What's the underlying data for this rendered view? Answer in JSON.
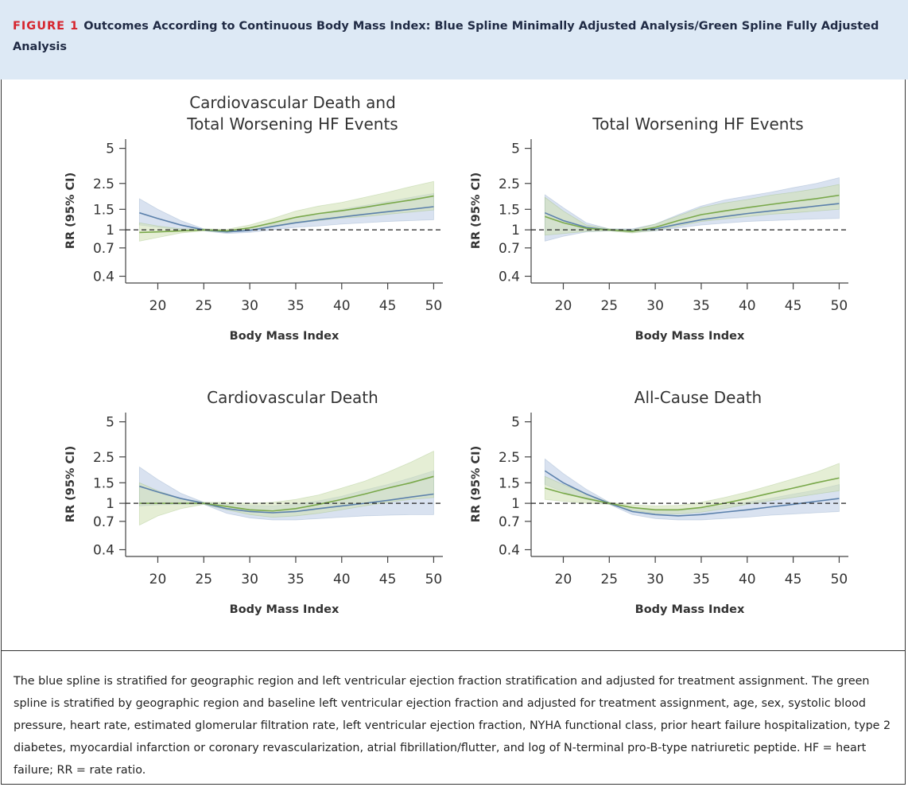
{
  "figure": {
    "label": "FIGURE 1",
    "title": "Outcomes According to Continuous Body Mass Index: Blue Spline Minimally Adjusted Analysis/Green Spline Fully Adjusted Analysis"
  },
  "chart_data": [
    {
      "type": "line",
      "title": "Cardiovascular Death and Total Worsening HF Events",
      "xlabel": "Body Mass Index",
      "ylabel": "RR (95% CI)",
      "x": [
        18,
        20,
        22.5,
        25,
        27.5,
        30,
        32.5,
        35,
        37.5,
        40,
        42.5,
        45,
        47.5,
        50
      ],
      "series": [
        {
          "color": "#5b80ab",
          "band_color": "#b9cbe3",
          "values": [
            1.4,
            1.25,
            1.1,
            1.0,
            0.96,
            0.99,
            1.07,
            1.15,
            1.22,
            1.29,
            1.36,
            1.43,
            1.5,
            1.58
          ],
          "lower": [
            1.1,
            1.05,
            1.0,
            0.98,
            0.93,
            0.95,
            1.0,
            1.05,
            1.08,
            1.12,
            1.15,
            1.18,
            1.2,
            1.22
          ],
          "upper": [
            1.85,
            1.5,
            1.2,
            1.02,
            0.99,
            1.04,
            1.15,
            1.27,
            1.38,
            1.5,
            1.62,
            1.75,
            1.9,
            2.05
          ]
        },
        {
          "color": "#79a84a",
          "band_color": "#cfe0b2",
          "values": [
            0.95,
            0.96,
            0.98,
            1.0,
            0.98,
            1.04,
            1.15,
            1.28,
            1.38,
            1.46,
            1.56,
            1.68,
            1.8,
            1.95
          ],
          "lower": [
            0.8,
            0.86,
            0.94,
            0.98,
            0.95,
            0.99,
            1.06,
            1.14,
            1.2,
            1.26,
            1.3,
            1.36,
            1.42,
            1.48
          ],
          "upper": [
            1.15,
            1.08,
            1.02,
            1.02,
            1.01,
            1.1,
            1.25,
            1.45,
            1.6,
            1.72,
            1.9,
            2.1,
            2.35,
            2.6
          ]
        }
      ],
      "xlim": [
        16.5,
        51
      ],
      "ylim": [
        0.35,
        6
      ],
      "xticks": [
        20,
        25,
        30,
        35,
        40,
        45,
        50
      ],
      "yticks": [
        0.4,
        0.7,
        1,
        1.5,
        2.5,
        5
      ],
      "log_y": true,
      "reference_line": 1
    },
    {
      "type": "line",
      "title": "Total Worsening HF Events",
      "xlabel": "Body Mass Index",
      "ylabel": "RR (95% CI)",
      "x": [
        18,
        20,
        22.5,
        25,
        27.5,
        30,
        32.5,
        35,
        37.5,
        40,
        42.5,
        45,
        47.5,
        50
      ],
      "series": [
        {
          "color": "#5b80ab",
          "band_color": "#b9cbe3",
          "values": [
            1.4,
            1.2,
            1.05,
            1.0,
            0.98,
            1.02,
            1.12,
            1.22,
            1.3,
            1.38,
            1.45,
            1.52,
            1.6,
            1.68
          ],
          "lower": [
            0.8,
            0.88,
            0.96,
            0.98,
            0.95,
            0.98,
            1.04,
            1.1,
            1.14,
            1.18,
            1.2,
            1.22,
            1.24,
            1.25
          ],
          "upper": [
            2.0,
            1.55,
            1.15,
            1.02,
            1.02,
            1.12,
            1.35,
            1.6,
            1.8,
            1.95,
            2.1,
            2.3,
            2.5,
            2.8
          ]
        },
        {
          "color": "#79a84a",
          "band_color": "#cfe0b2",
          "values": [
            1.3,
            1.15,
            1.03,
            1.0,
            0.97,
            1.05,
            1.2,
            1.35,
            1.45,
            1.55,
            1.65,
            1.75,
            1.85,
            1.98
          ],
          "lower": [
            0.9,
            0.93,
            0.97,
            0.98,
            0.94,
            0.99,
            1.08,
            1.18,
            1.24,
            1.3,
            1.36,
            1.4,
            1.45,
            1.5
          ],
          "upper": [
            1.9,
            1.45,
            1.1,
            1.02,
            1.0,
            1.12,
            1.32,
            1.55,
            1.7,
            1.82,
            1.98,
            2.1,
            2.25,
            2.45
          ]
        }
      ],
      "xlim": [
        16.5,
        51
      ],
      "ylim": [
        0.35,
        6
      ],
      "xticks": [
        20,
        25,
        30,
        35,
        40,
        45,
        50
      ],
      "yticks": [
        0.4,
        0.7,
        1,
        1.5,
        2.5,
        5
      ],
      "log_y": true,
      "reference_line": 1
    },
    {
      "type": "line",
      "title": "Cardiovascular Death",
      "xlabel": "Body Mass Index",
      "ylabel": "RR (95% CI)",
      "x": [
        18,
        20,
        22.5,
        25,
        27.5,
        30,
        32.5,
        35,
        37.5,
        40,
        42.5,
        45,
        47.5,
        50
      ],
      "series": [
        {
          "color": "#5b80ab",
          "band_color": "#b9cbe3",
          "values": [
            1.4,
            1.25,
            1.1,
            1.0,
            0.9,
            0.85,
            0.83,
            0.85,
            0.9,
            0.95,
            1.0,
            1.06,
            1.13,
            1.2
          ],
          "lower": [
            0.95,
            0.97,
            0.98,
            0.98,
            0.82,
            0.75,
            0.72,
            0.72,
            0.74,
            0.76,
            0.78,
            0.79,
            0.8,
            0.8
          ],
          "upper": [
            2.05,
            1.6,
            1.22,
            1.02,
            0.98,
            0.96,
            0.95,
            0.98,
            1.05,
            1.15,
            1.3,
            1.45,
            1.65,
            1.9
          ]
        },
        {
          "color": "#79a84a",
          "band_color": "#cfe0b2",
          "values": [
            1.0,
            1.0,
            1.0,
            1.0,
            0.94,
            0.88,
            0.86,
            0.9,
            0.98,
            1.08,
            1.2,
            1.35,
            1.5,
            1.7
          ],
          "lower": [
            0.65,
            0.78,
            0.9,
            0.98,
            0.88,
            0.8,
            0.76,
            0.78,
            0.82,
            0.88,
            0.95,
            1.02,
            1.08,
            1.12
          ],
          "upper": [
            1.5,
            1.28,
            1.1,
            1.02,
            1.02,
            1.0,
            1.02,
            1.08,
            1.18,
            1.35,
            1.55,
            1.85,
            2.25,
            2.8
          ]
        }
      ],
      "xlim": [
        16.5,
        51
      ],
      "ylim": [
        0.35,
        6
      ],
      "xticks": [
        20,
        25,
        30,
        35,
        40,
        45,
        50
      ],
      "yticks": [
        0.4,
        0.7,
        1,
        1.5,
        2.5,
        5
      ],
      "log_y": true,
      "reference_line": 1
    },
    {
      "type": "line",
      "title": "All-Cause Death",
      "xlabel": "Body Mass Index",
      "ylabel": "RR (95% CI)",
      "x": [
        18,
        20,
        22.5,
        25,
        27.5,
        30,
        32.5,
        35,
        37.5,
        40,
        42.5,
        45,
        47.5,
        50
      ],
      "series": [
        {
          "color": "#5b80ab",
          "band_color": "#b9cbe3",
          "values": [
            1.9,
            1.5,
            1.2,
            1.0,
            0.85,
            0.8,
            0.78,
            0.8,
            0.84,
            0.88,
            0.93,
            0.98,
            1.04,
            1.1
          ],
          "lower": [
            1.45,
            1.25,
            1.08,
            0.98,
            0.8,
            0.74,
            0.72,
            0.72,
            0.74,
            0.76,
            0.79,
            0.81,
            0.83,
            0.85
          ],
          "upper": [
            2.4,
            1.8,
            1.32,
            1.02,
            0.92,
            0.88,
            0.86,
            0.9,
            0.96,
            1.02,
            1.1,
            1.2,
            1.3,
            1.45
          ]
        },
        {
          "color": "#79a84a",
          "band_color": "#cfe0b2",
          "values": [
            1.35,
            1.22,
            1.1,
            1.0,
            0.92,
            0.88,
            0.88,
            0.92,
            1.0,
            1.1,
            1.22,
            1.35,
            1.5,
            1.65
          ],
          "lower": [
            1.08,
            1.04,
            1.0,
            0.98,
            0.87,
            0.82,
            0.81,
            0.84,
            0.9,
            0.98,
            1.05,
            1.12,
            1.2,
            1.28
          ],
          "upper": [
            1.7,
            1.45,
            1.2,
            1.02,
            0.97,
            0.95,
            0.96,
            1.02,
            1.12,
            1.25,
            1.42,
            1.62,
            1.85,
            2.2
          ]
        }
      ],
      "xlim": [
        16.5,
        51
      ],
      "ylim": [
        0.35,
        6
      ],
      "xticks": [
        20,
        25,
        30,
        35,
        40,
        45,
        50
      ],
      "yticks": [
        0.4,
        0.7,
        1,
        1.5,
        2.5,
        5
      ],
      "log_y": true,
      "reference_line": 1
    }
  ],
  "caption": "The blue spline is stratified for geographic region and left ventricular ejection fraction stratification and adjusted for treatment assignment. The green spline is stratified by geographic region and baseline left ventricular ejection fraction and adjusted for treatment assignment, age, sex, systolic blood pressure, heart rate, estimated glomerular filtration rate, left ventricular ejection fraction, NYHA functional class, prior heart failure hospitalization, type 2 diabetes, myocardial infarction or coronary revascularization, atrial fibrillation/flutter, and log of N-terminal pro-B-type natriuretic peptide. HF = heart failure; RR = rate ratio."
}
